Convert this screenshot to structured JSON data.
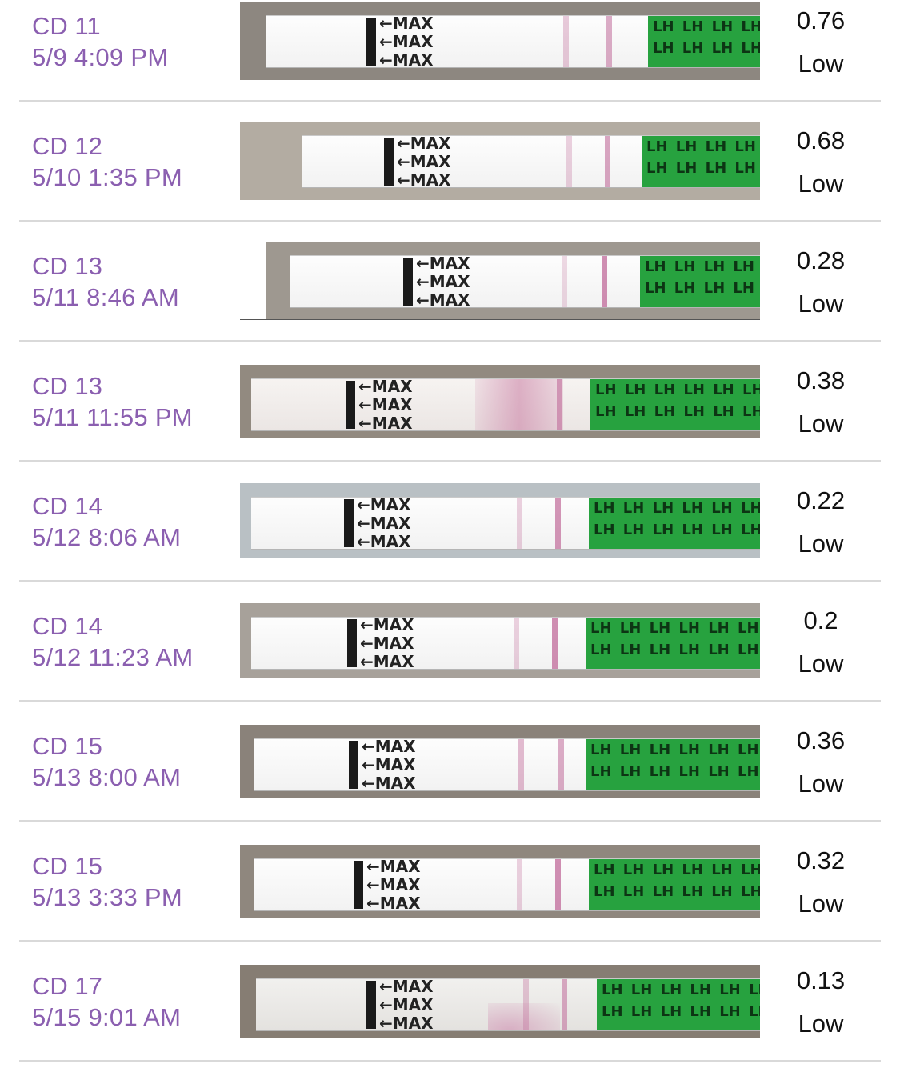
{
  "entries": [
    {
      "day": "CD 11",
      "time": "5/9 4:09 PM",
      "value": "0.76",
      "level": "Low"
    },
    {
      "day": "CD 12",
      "time": "5/10 1:35 PM",
      "value": "0.68",
      "level": "Low"
    },
    {
      "day": "CD 13",
      "time": "5/11 8:46 AM",
      "value": "0.28",
      "level": "Low"
    },
    {
      "day": "CD 13",
      "time": "5/11 11:55 PM",
      "value": "0.38",
      "level": "Low"
    },
    {
      "day": "CD 14",
      "time": "5/12 8:06 AM",
      "value": "0.22",
      "level": "Low"
    },
    {
      "day": "CD 14",
      "time": "5/12 11:23 AM",
      "value": "0.2",
      "level": "Low"
    },
    {
      "day": "CD 15",
      "time": "5/13 8:00 AM",
      "value": "0.36",
      "level": "Low"
    },
    {
      "day": "CD 15",
      "time": "5/13 3:33 PM",
      "value": "0.32",
      "level": "Low"
    },
    {
      "day": "CD 17",
      "time": "5/15 9:01 AM",
      "value": "0.13",
      "level": "Low"
    }
  ],
  "strip_text": {
    "max": "←MAX",
    "lh": "LH LH LH LH LH LH"
  },
  "colors": {
    "accent": "#8b5fb0",
    "strip_green": "#27a23f",
    "test_line": "#c06a99"
  }
}
